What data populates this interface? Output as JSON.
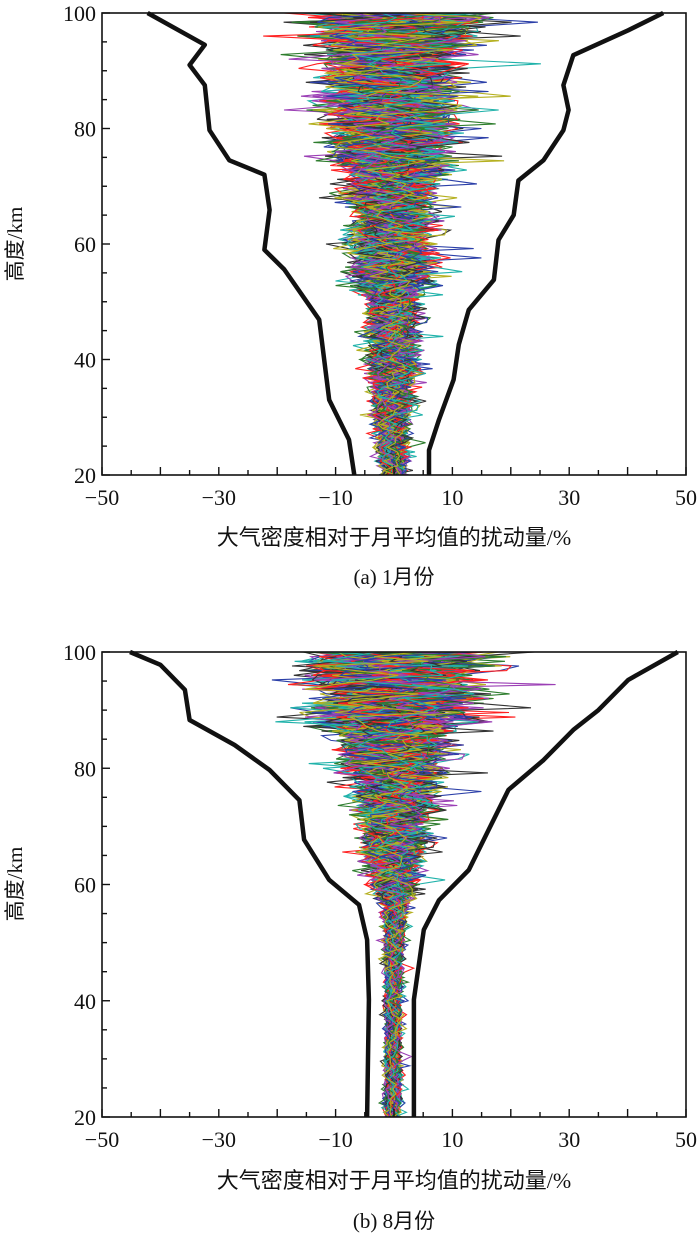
{
  "chart_data": [
    {
      "type": "line",
      "panel_label": "(a) 1月份",
      "xlabel": "大气密度相对于月平均值的扰动量/%",
      "ylabel": "高度/km",
      "xlim": [
        -50,
        50
      ],
      "ylim": [
        20,
        100
      ],
      "x_ticks": [
        "−50",
        "−30",
        "−10",
        "10",
        "30",
        "50"
      ],
      "x_tick_values": [
        -50,
        -30,
        -10,
        10,
        30,
        50
      ],
      "y_ticks": [
        "20",
        "40",
        "60",
        "80",
        "100"
      ],
      "y_tick_values": [
        20,
        40,
        60,
        80,
        100
      ],
      "grid": false,
      "envelope_left": {
        "alt": [
          100,
          94.5,
          91,
          87.5,
          79.7,
          74.5,
          72,
          65.9,
          59,
          55.6,
          46.9,
          33,
          26.1,
          20
        ],
        "x": [
          -42.2,
          -32.4,
          -35,
          -32.4,
          -31.6,
          -28.2,
          -22.2,
          -21.3,
          -22.2,
          -18.8,
          -12.8,
          -11.1,
          -7.7,
          -6.8
        ]
      },
      "envelope_right": {
        "alt": [
          100,
          97,
          92.7,
          87.5,
          83.2,
          79.7,
          74.5,
          71,
          65,
          60.7,
          53.8,
          48.6,
          42.6,
          36.5,
          29.6,
          24.3,
          20
        ],
        "x": [
          46.1,
          40.1,
          30.7,
          29,
          29.9,
          29,
          25.6,
          21.3,
          20.5,
          17.9,
          17.1,
          12.8,
          11.1,
          10.2,
          7.7,
          6,
          6
        ]
      },
      "envelope_color": "#111111",
      "profile_count": 160,
      "profile_colors": [
        "#ff2020",
        "#2b3fa8",
        "#2e7d2e",
        "#9b3fb5",
        "#20b2aa",
        "#b5b020",
        "#333333"
      ]
    },
    {
      "type": "line",
      "panel_label": "(b) 8月份",
      "xlabel": "大气密度相对于月平均值的扰动量/%",
      "ylabel": "高度/km",
      "xlim": [
        -50,
        50
      ],
      "ylim": [
        20,
        100
      ],
      "x_ticks": [
        "−50",
        "−30",
        "−10",
        "10",
        "30",
        "50"
      ],
      "x_tick_values": [
        -50,
        -30,
        -10,
        10,
        30,
        50
      ],
      "y_ticks": [
        "20",
        "40",
        "60",
        "80",
        "100"
      ],
      "y_tick_values": [
        20,
        40,
        60,
        80,
        100
      ],
      "grid": false,
      "envelope_left": {
        "alt": [
          100,
          97.8,
          93.5,
          88.3,
          84,
          79.7,
          74.5,
          67.7,
          60.8,
          56.5,
          50.5,
          40.2,
          20
        ],
        "x": [
          -45.2,
          -40,
          -35.8,
          -35,
          -27.3,
          -21.3,
          -16.2,
          -15.4,
          -11.1,
          -6,
          -4.6,
          -4.3,
          -4.6
        ]
      },
      "envelope_right": {
        "alt": [
          100,
          95.2,
          90,
          86.6,
          81.4,
          76.3,
          69.4,
          62.5,
          57.3,
          52.2,
          40.2,
          20
        ],
        "x": [
          48.6,
          40.1,
          35,
          30.7,
          25.6,
          19.6,
          16.2,
          12.8,
          7.7,
          5.1,
          3.4,
          3.4
        ]
      },
      "envelope_color": "#111111",
      "profile_count": 160,
      "profile_colors": [
        "#ff2020",
        "#2b3fa8",
        "#2e7d2e",
        "#9b3fb5",
        "#20b2aa",
        "#b5b020",
        "#333333"
      ]
    }
  ]
}
